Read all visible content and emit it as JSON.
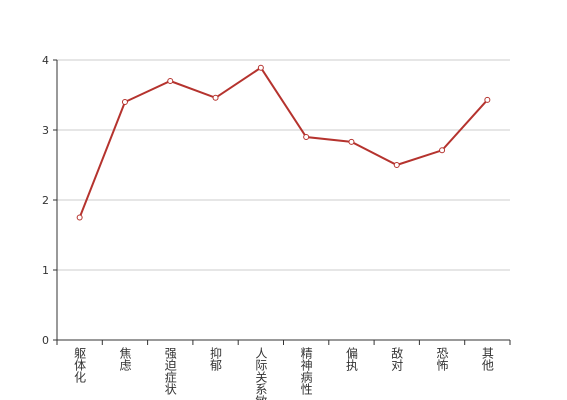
{
  "chart_data": {
    "type": "line",
    "categories": [
      "躯体化",
      "焦虑",
      "强迫症状",
      "抑郁",
      "人际关系敏感",
      "精神病性",
      "偏执",
      "敌对",
      "恐怖",
      "其他"
    ],
    "values": [
      1.75,
      3.4,
      3.7,
      3.46,
      3.89,
      2.9,
      2.83,
      2.5,
      2.71,
      3.43
    ],
    "color": "#b5332e",
    "ylim": [
      0,
      4
    ],
    "yticks": [
      0,
      1,
      2,
      3,
      4
    ],
    "grid": true
  }
}
